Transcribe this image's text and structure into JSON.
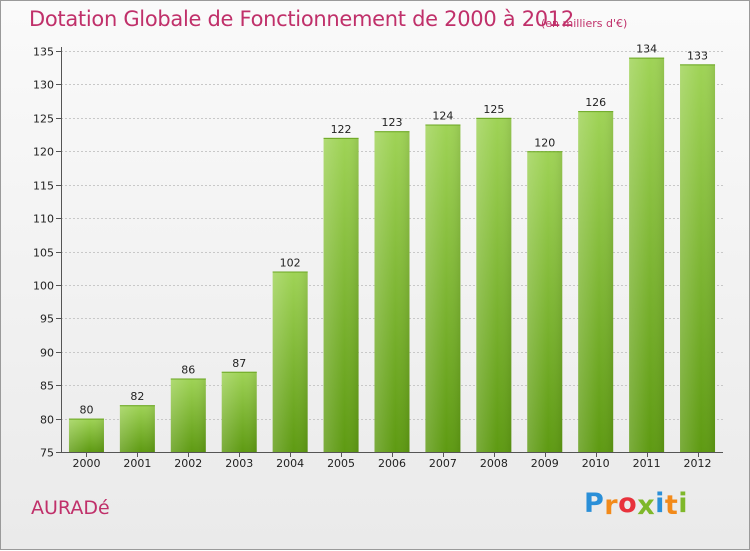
{
  "title": "Dotation Globale de Fonctionnement de 2000 à 2012",
  "subtitle": "(en milliers d'€)",
  "commune": "AURADé",
  "logo": {
    "text": "Proxiti",
    "letters": [
      "P",
      "r",
      "o",
      "x",
      "i",
      "t",
      "i"
    ],
    "colors": [
      "#2a8fd8",
      "#f28a1a",
      "#e8323c",
      "#7fb82a",
      "#2a8fd8",
      "#f28a1a",
      "#7fb82a"
    ]
  },
  "colors": {
    "title": "#c0306a",
    "bar_light": "#9fd356",
    "bar_dark": "#5e9a12",
    "grid": "#c8c8c8"
  },
  "chart_data": {
    "type": "bar",
    "title": "Dotation Globale de Fonctionnement de 2000 à 2012",
    "subtitle": "(en milliers d'€)",
    "xlabel": "",
    "ylabel": "",
    "categories": [
      "2000",
      "2001",
      "2002",
      "2003",
      "2004",
      "2005",
      "2006",
      "2007",
      "2008",
      "2009",
      "2010",
      "2011",
      "2012"
    ],
    "values": [
      80,
      82,
      86,
      87,
      102,
      122,
      123,
      124,
      125,
      120,
      126,
      134,
      133
    ],
    "ylim": [
      75,
      135
    ],
    "yticks": [
      75,
      80,
      85,
      90,
      95,
      100,
      105,
      110,
      115,
      120,
      125,
      130,
      135
    ],
    "grid": true,
    "legend": "none"
  }
}
